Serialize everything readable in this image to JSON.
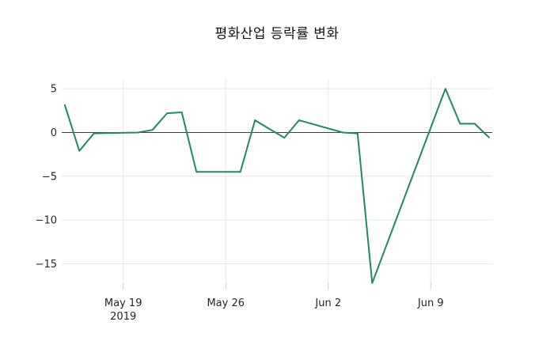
{
  "title": "평화산업 등락률 변화",
  "chart_data": {
    "type": "line",
    "title": "평화산업 등락률 변화",
    "xlabel": "",
    "ylabel": "",
    "grid": true,
    "legend": "none",
    "series_color": "#1e8c55",
    "zero_line_color": "#404040",
    "grid_color": "#e7e7e7",
    "tick_color": "#cccccc",
    "label_color": "#262626",
    "background_color": "#ffffff",
    "ylim": [
      -17.4,
      6.1
    ],
    "xlim_days": [
      -0.2,
      29.2
    ],
    "y_ticks": [
      {
        "value": 5,
        "label": "5"
      },
      {
        "value": 0,
        "label": "0"
      },
      {
        "value": -5,
        "label": "−5"
      },
      {
        "value": -10,
        "label": "−10"
      },
      {
        "value": -15,
        "label": "−15"
      }
    ],
    "x_ticks": [
      {
        "day": 4,
        "label": "May 19",
        "sublabel": "2019"
      },
      {
        "day": 11,
        "label": "May 26",
        "sublabel": ""
      },
      {
        "day": 18,
        "label": "Jun 2",
        "sublabel": ""
      },
      {
        "day": 25,
        "label": "Jun 9",
        "sublabel": ""
      }
    ],
    "points": [
      {
        "date": "May 15",
        "day": 0,
        "value": 3.2
      },
      {
        "date": "May 16",
        "day": 1,
        "value": -2.1
      },
      {
        "date": "May 17",
        "day": 2,
        "value": -0.1
      },
      {
        "date": "May 20",
        "day": 5,
        "value": 0.0
      },
      {
        "date": "May 21",
        "day": 6,
        "value": 0.3
      },
      {
        "date": "May 22",
        "day": 7,
        "value": 2.2
      },
      {
        "date": "May 23",
        "day": 8,
        "value": 2.3
      },
      {
        "date": "May 24",
        "day": 9,
        "value": -4.5
      },
      {
        "date": "May 27",
        "day": 12,
        "value": -4.5
      },
      {
        "date": "May 28",
        "day": 13,
        "value": 1.4
      },
      {
        "date": "May 29",
        "day": 14,
        "value": 0.4
      },
      {
        "date": "May 30",
        "day": 15,
        "value": -0.6
      },
      {
        "date": "May 31",
        "day": 16,
        "value": 1.4
      },
      {
        "date": "Jun 3",
        "day": 19,
        "value": 0.0
      },
      {
        "date": "Jun 4",
        "day": 20,
        "value": -0.1
      },
      {
        "date": "Jun 5",
        "day": 21,
        "value": -17.2
      },
      {
        "date": "Jun 10",
        "day": 26,
        "value": 5.0
      },
      {
        "date": "Jun 11",
        "day": 27,
        "value": 1.0
      },
      {
        "date": "Jun 12",
        "day": 28,
        "value": 1.0
      },
      {
        "date": "Jun 13",
        "day": 29,
        "value": -0.6
      }
    ]
  }
}
